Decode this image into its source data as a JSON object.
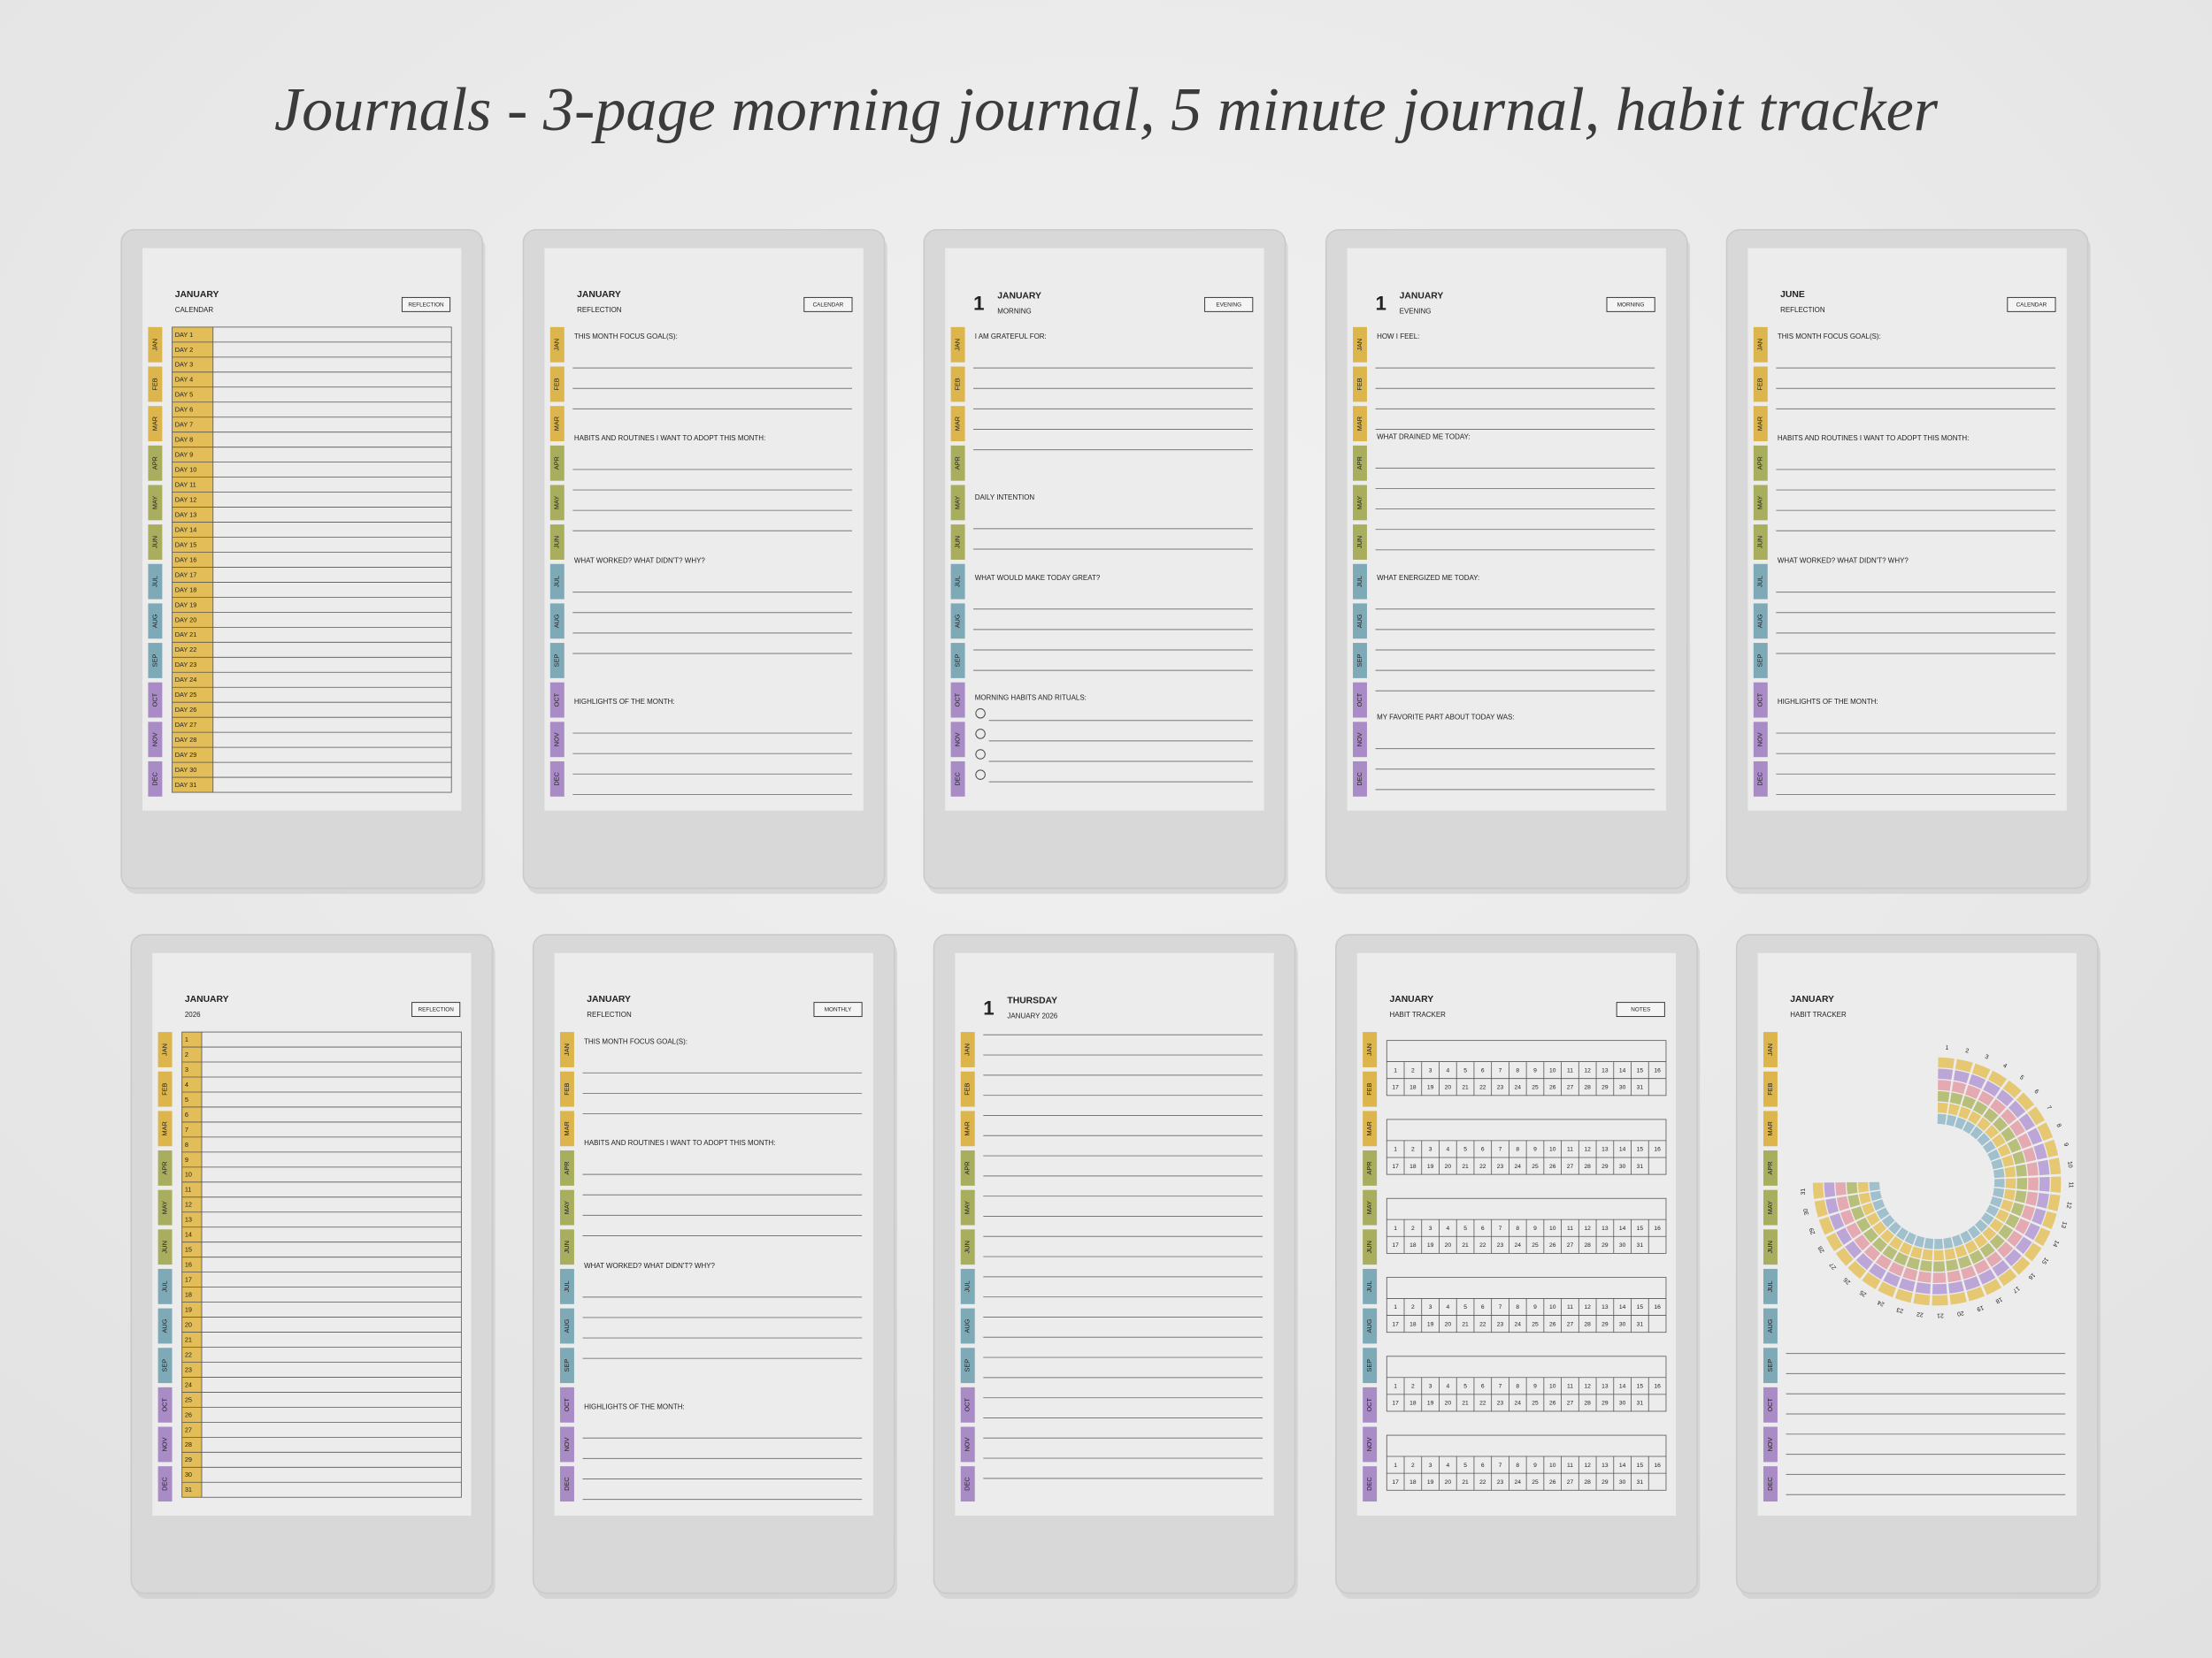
{
  "title": "Journals - 3-page morning journal, 5 minute journal, habit tracker",
  "month_tabs": [
    "JAN",
    "FEB",
    "MAR",
    "APR",
    "MAY",
    "JUN",
    "JUL",
    "AUG",
    "SEP",
    "OCT",
    "NOV",
    "DEC"
  ],
  "days": [
    1,
    2,
    3,
    4,
    5,
    6,
    7,
    8,
    9,
    10,
    11,
    12,
    13,
    14,
    15,
    16,
    17,
    18,
    19,
    20,
    21,
    22,
    23,
    24,
    25,
    26,
    27,
    28,
    29,
    30,
    31
  ],
  "pages": [
    {
      "month": "JANUARY",
      "subtitle": "CALENDAR",
      "button": "REFLECTION",
      "rows": [
        "DAY 1",
        "DAY 2",
        "DAY 3",
        "DAY 4",
        "DAY 5",
        "DAY 6",
        "DAY 7",
        "DAY 8",
        "DAY 9",
        "DAY 10",
        "DAY 11",
        "DAY 12",
        "DAY 13",
        "DAY 14",
        "DAY 15",
        "DAY 16",
        "DAY 17",
        "DAY 18",
        "DAY 19",
        "DAY 20",
        "DAY 21",
        "DAY 22",
        "DAY 23",
        "DAY 24",
        "DAY 25",
        "DAY 26",
        "DAY 27",
        "DAY 28",
        "DAY 29",
        "DAY 30",
        "DAY 31"
      ]
    },
    {
      "month": "JANUARY",
      "subtitle": "REFLECTION",
      "button": "CALENDAR",
      "prompts": [
        "THIS MONTH FOCUS GOAL(S):",
        "HABITS AND ROUTINES I WANT TO ADOPT THIS MONTH:",
        "WHAT WORKED? WHAT DIDN'T? WHY?",
        "HIGHLIGHTS OF THE MONTH:"
      ]
    },
    {
      "day": 1,
      "month": "JANUARY",
      "subtitle": "MORNING",
      "button": "EVENING",
      "prompts": [
        "I AM GRATEFUL FOR:",
        "DAILY INTENTION",
        "WHAT WOULD MAKE TODAY GREAT?",
        "MORNING HABITS AND RITUALS:"
      ]
    },
    {
      "day": 1,
      "month": "JANUARY",
      "subtitle": "EVENING",
      "button": "MORNING",
      "prompts": [
        "HOW I FEEL:",
        "WHAT DRAINED ME TODAY:",
        "WHAT ENERGIZED ME TODAY:",
        "MY FAVORITE PART ABOUT TODAY WAS:"
      ]
    },
    {
      "month": "JUNE",
      "subtitle": "REFLECTION",
      "button": "CALENDAR",
      "prompts": [
        "THIS MONTH FOCUS GOAL(S):",
        "HABITS AND ROUTINES I WANT TO ADOPT THIS MONTH:",
        "WHAT WORKED? WHAT DIDN'T? WHY?",
        "HIGHLIGHTS OF THE MONTH:"
      ]
    },
    {
      "month": "JANUARY",
      "subtitle": "2026",
      "button": "REFLECTION"
    },
    {
      "month": "JANUARY",
      "subtitle": "REFLECTION",
      "button": "MONTHLY",
      "prompts": [
        "THIS MONTH FOCUS GOAL(S):",
        "HABITS AND ROUTINES I WANT TO ADOPT THIS MONTH:",
        "WHAT WORKED? WHAT DIDN'T? WHY?",
        "HIGHLIGHTS OF THE MONTH:"
      ]
    },
    {
      "day": 1,
      "month": "THURSDAY",
      "subtitle": "JANUARY 2026"
    },
    {
      "month": "JANUARY",
      "subtitle": "HABIT TRACKER",
      "button": "NOTES"
    },
    {
      "month": "JANUARY",
      "subtitle": "HABIT TRACKER"
    }
  ]
}
